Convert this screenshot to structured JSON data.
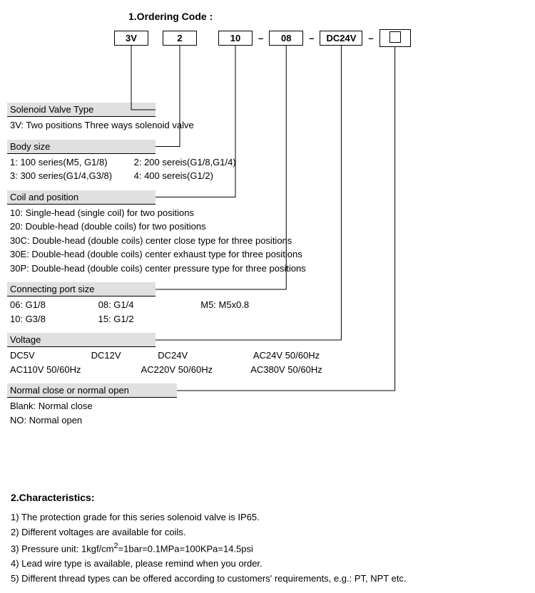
{
  "title1": "1.Ordering Code :",
  "title2": "2.Characteristics:",
  "code": {
    "c1": "3V",
    "c2": "2",
    "c3": "10",
    "sep1": "–",
    "c4": "08",
    "sep2": "–",
    "c5": "DC24V",
    "sep3": "–"
  },
  "sections": {
    "s1": {
      "header": "Solenoid Valve Type",
      "line1": "3V: Two positions Three ways solenoid valve"
    },
    "s2": {
      "header": "Body size",
      "line1a": "1: 100 series(M5, G1/8)",
      "line1b": "2: 200 sereis(G1/8,G1/4)",
      "line2a": "3: 300 series(G1/4,G3/8)",
      "line2b": "4: 400 sereis(G1/2)"
    },
    "s3": {
      "header": "Coil and position",
      "l1": "10:  Single-head (single coil) for two positions",
      "l2": "20:  Double-head (double coils) for two positions",
      "l3": "30C: Double-head (double coils) center close type for three positions",
      "l4": "30E: Double-head (double coils) center exhaust type for three positions",
      "l5": "30P: Double-head (double coils) center pressure type for three positions"
    },
    "s4": {
      "header": "Connecting port size",
      "r1a": "06: G1/8",
      "r1b": "08: G1/4",
      "r1c": "M5: M5x0.8",
      "r2a": "10: G3/8",
      "r2b": "15: G1/2"
    },
    "s5": {
      "header": "Voltage",
      "r1a": "DC5V",
      "r1b": "DC12V",
      "r1c": "DC24V",
      "r1d": "AC24V 50/60Hz",
      "r2a": "AC110V 50/60Hz",
      "r2b": "AC220V 50/60Hz",
      "r2c": "AC380V 50/60Hz"
    },
    "s6": {
      "header": "Normal close or normal open",
      "l1": "Blank:  Normal close",
      "l2": "NO: Normal open"
    }
  },
  "characteristics": {
    "l1": "1) The protection grade for this series solenoid valve is IP65.",
    "l2": "2) Different voltages are available for coils.",
    "l3a": "3) Pressure unit: 1kgf/cm",
    "l3sup": "2",
    "l3b": "=1bar=0.1MPa=100KPa=14.5psi",
    "l4": "4) Lead wire type is available, please remind when you order.",
    "l5": "5) Different thread types can be offered according to customers' requirements, e.g.: PT, NPT etc."
  },
  "lines": {
    "stroke": "#000000",
    "stroke_width": 1
  }
}
